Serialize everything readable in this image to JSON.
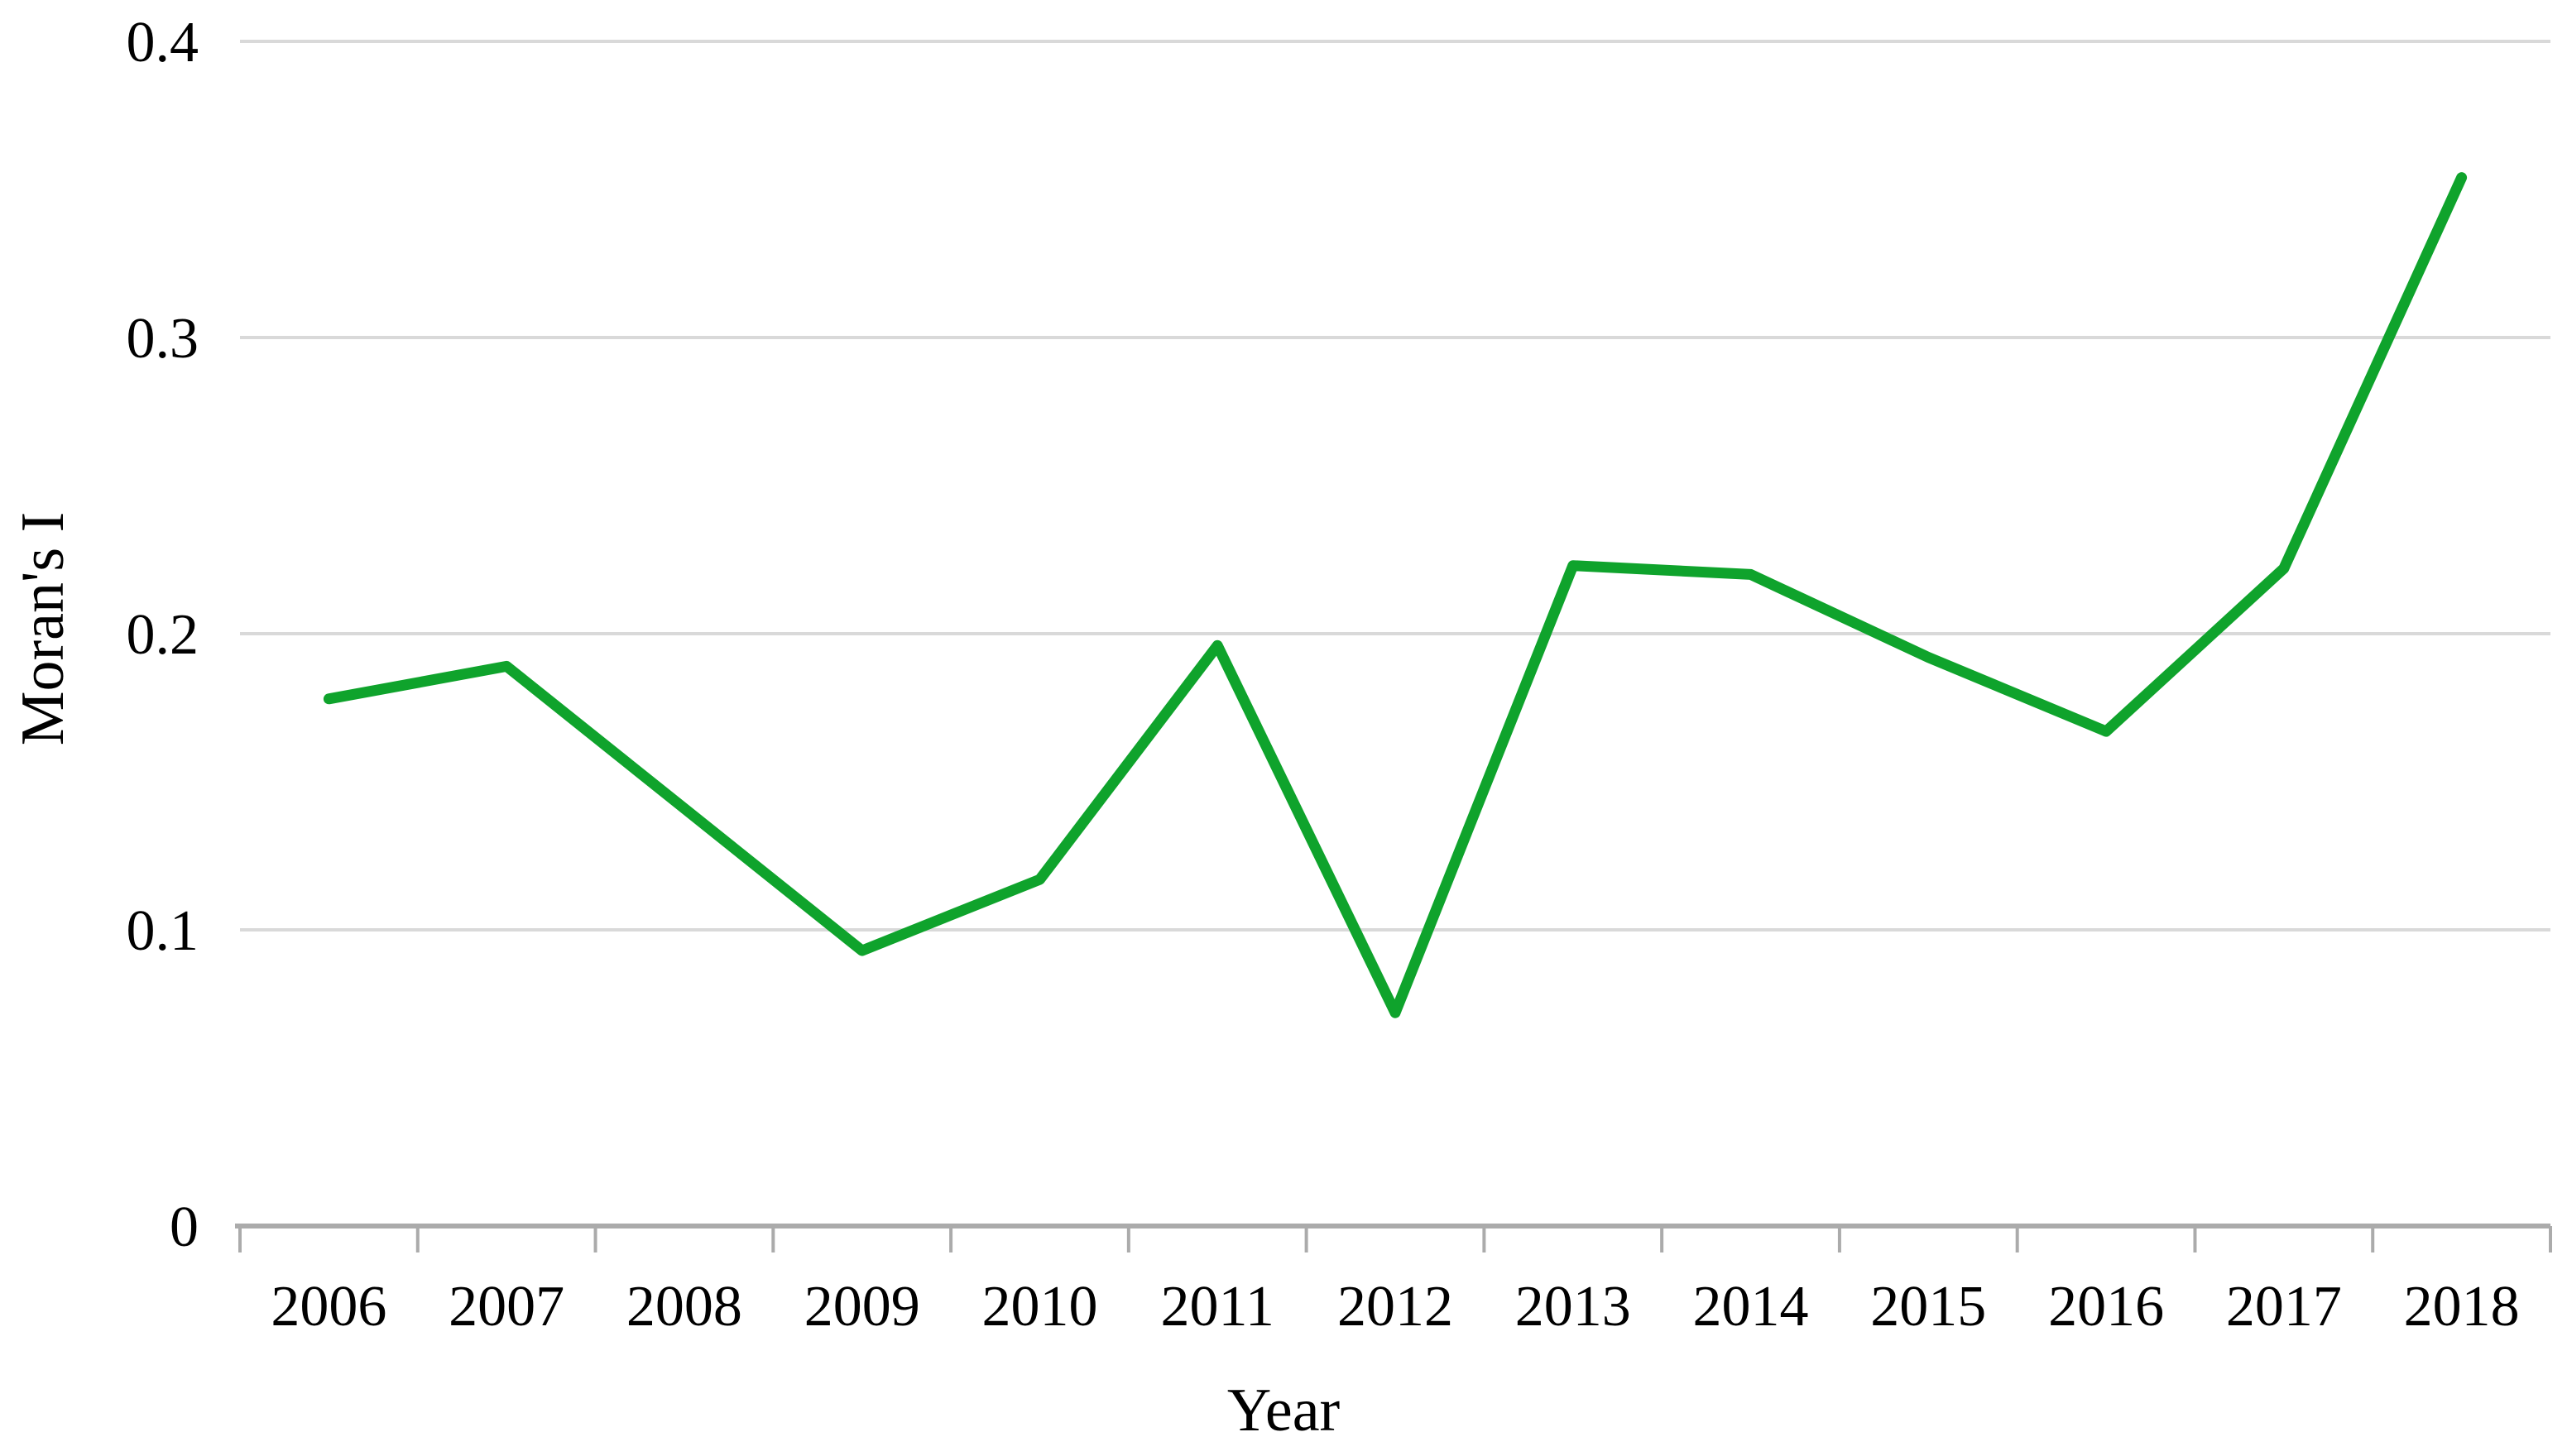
{
  "figure": {
    "background": "#ffffff"
  },
  "chart_data": {
    "type": "line",
    "title": "",
    "xlabel": "Year",
    "ylabel": "Moran's I",
    "x": [
      "2006",
      "2007",
      "2008",
      "2009",
      "2010",
      "2011",
      "2012",
      "2013",
      "2014",
      "2015",
      "2016",
      "2017",
      "2018"
    ],
    "series": [
      {
        "name": "Moran's I",
        "values": [
          0.178,
          0.189,
          0.141,
          0.093,
          0.117,
          0.196,
          0.072,
          0.223,
          0.22,
          0.192,
          0.167,
          0.222,
          0.354
        ]
      }
    ],
    "ylim": [
      0,
      0.4
    ],
    "yticks": [
      0,
      0.1,
      0.2,
      0.3,
      0.4
    ],
    "ytick_labels": [
      "0",
      "0.1",
      "0.2",
      "0.3",
      "0.4"
    ],
    "grid": "horizontal-only",
    "legend": "none",
    "colors": {
      "line": "#0fa32c",
      "gridline": "#d9d9d9",
      "axis": "#ababab",
      "text": "#000000",
      "background": "#ffffff"
    }
  }
}
